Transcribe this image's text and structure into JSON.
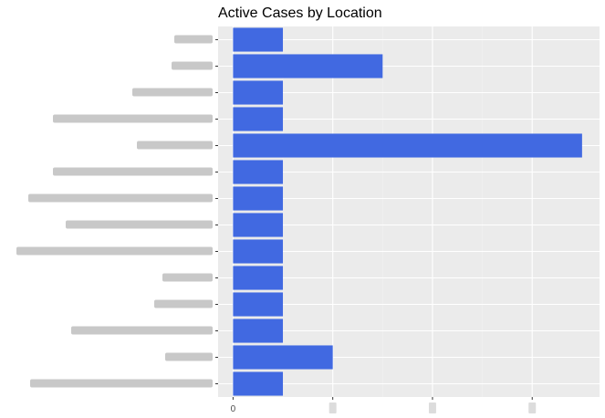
{
  "chart_data": {
    "type": "bar",
    "orientation": "horizontal",
    "title": "Active Cases by Location",
    "categories": [
      "",
      "",
      "",
      "",
      "",
      "",
      "",
      "",
      "",
      "",
      "",
      "",
      "",
      ""
    ],
    "values": [
      1,
      3,
      1,
      1,
      7,
      1,
      1,
      1,
      1,
      1,
      1,
      1,
      2,
      1
    ],
    "x_tick_labels": [
      "0",
      "",
      "",
      ""
    ],
    "x_ticks": [
      0,
      2,
      4,
      6
    ],
    "xlim": [
      -0.3,
      7.35
    ],
    "xlabel": "",
    "ylabel": "",
    "grid": true,
    "legend": "none",
    "colors": {
      "bar": "#4169E1",
      "panel": "#EBEBEB",
      "grid_major": "#FFFFFF",
      "grid_minor": "#F2F2F2",
      "text": "#4D4D4D"
    }
  }
}
